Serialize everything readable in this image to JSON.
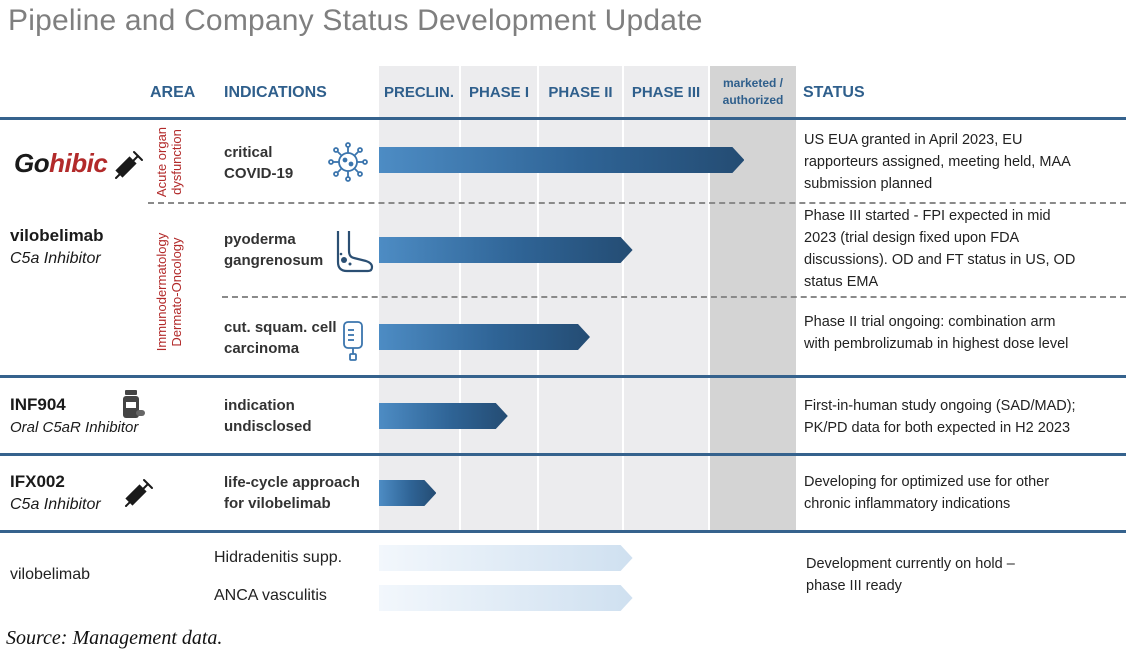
{
  "title": "Pipeline and Company Status Development Update",
  "headers": {
    "area": "AREA",
    "indications": "INDICATIONS",
    "phases": [
      "PRECLIN.",
      "PHASE I",
      "PHASE II",
      "PHASE III"
    ],
    "marketed_line1": "marketed /",
    "marketed_line2": "authorized",
    "status": "STATUS"
  },
  "areas": {
    "acute_line1": "Acute organ",
    "acute_line2": "dysfunction",
    "immuno_line1": "Immunodermatology",
    "immuno_line2": "Dermato-Oncology"
  },
  "products": {
    "gohibic_go": "Go",
    "gohibic_hibic": "hibic",
    "vilobelimab": "vilobelimab",
    "vilobelimab_sub": "C5a Inhibitor",
    "inf904": "INF904",
    "inf904_sub": "Oral C5aR Inhibitor",
    "ifx002": "IFX002",
    "ifx002_sub": "C5a Inhibitor",
    "vilobelimab_hold": "vilobelimab"
  },
  "rows": [
    {
      "indication_line1": "critical",
      "indication_line2": "COVID-19",
      "status_lines": [
        "US EUA granted in April 2023, EU",
        "rapporteurs assigned, meeting held, MAA",
        "submission planned"
      ],
      "progress": 4.4
    },
    {
      "indication_line1": "pyoderma",
      "indication_line2": "gangrenosum",
      "status_lines": [
        "Phase III started - FPI expected in mid",
        "2023 (trial design fixed upon FDA",
        "discussions). OD and FT status in US, OD",
        "status EMA"
      ],
      "progress": 3.1
    },
    {
      "indication_line1": "cut. squam. cell",
      "indication_line2": "carcinoma",
      "status_lines": [
        "Phase II trial ongoing: combination arm",
        "with pembrolizumab in highest dose level"
      ],
      "progress": 2.6
    },
    {
      "indication_line1": "indication",
      "indication_line2": "undisclosed",
      "status_lines": [
        "First-in-human study ongoing (SAD/MAD);",
        "PK/PD data for both expected in H2 2023"
      ],
      "progress": 1.6
    },
    {
      "indication_line1": "life-cycle approach",
      "indication_line2": "for vilobelimab",
      "status_lines": [
        "Developing for optimized use for other",
        "chronic inflammatory indications"
      ],
      "progress": 0.7
    }
  ],
  "hold": {
    "indications": [
      "Hidradenitis supp.",
      "ANCA vasculitis"
    ],
    "status_line1": "Development currently on hold –",
    "status_line2": "phase III ready",
    "progress": [
      3.1,
      3.1
    ]
  },
  "source": "Source: Management data.",
  "colors": {
    "accent": "#35628d",
    "area_red": "#b22a2a",
    "bar_dark": "#2f6496"
  },
  "icons": [
    "virus-icon",
    "foot-icon",
    "infusion-bag-icon",
    "pill-bottle-icon",
    "syringe-icon"
  ]
}
